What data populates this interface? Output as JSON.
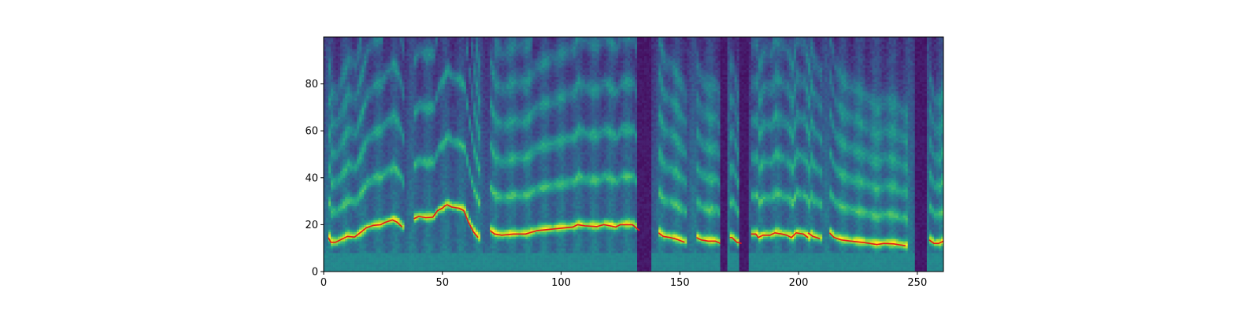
{
  "chart_data": {
    "type": "heatmap",
    "title": "",
    "xlabel": "",
    "ylabel": "",
    "xlim": [
      0,
      261
    ],
    "ylim": [
      0,
      100
    ],
    "x_ticks": [
      {
        "value": 0,
        "label": "0"
      },
      {
        "value": 50,
        "label": "50"
      },
      {
        "value": 100,
        "label": "100"
      },
      {
        "value": 150,
        "label": "150"
      },
      {
        "value": 200,
        "label": "200"
      },
      {
        "value": 250,
        "label": "250"
      }
    ],
    "y_ticks": [
      {
        "value": 0,
        "label": "0"
      },
      {
        "value": 20,
        "label": "20"
      },
      {
        "value": 40,
        "label": "40"
      },
      {
        "value": 60,
        "label": "60"
      },
      {
        "value": 80,
        "label": "80"
      }
    ],
    "colormap": "viridis",
    "grid": false,
    "series": [
      {
        "type": "line",
        "color": "#e41a1c",
        "segments": [
          [
            [
              2,
              14.5
            ],
            [
              3,
              12.5
            ],
            [
              5,
              12.5
            ],
            [
              8,
              14
            ],
            [
              10,
              15
            ],
            [
              13,
              14.7
            ],
            [
              16,
              17
            ],
            [
              18,
              18.7
            ],
            [
              21,
              19.7
            ],
            [
              24,
              20
            ],
            [
              26,
              21
            ],
            [
              29,
              22
            ],
            [
              31,
              21
            ],
            [
              33,
              19
            ]
          ],
          [
            [
              38,
              22.5
            ],
            [
              40,
              23.5
            ],
            [
              43,
              23
            ],
            [
              46,
              23.2
            ],
            [
              48,
              26
            ],
            [
              50,
              27
            ],
            [
              51,
              28
            ],
            [
              52,
              28.5
            ],
            [
              54,
              27.5
            ],
            [
              57,
              27
            ],
            [
              59,
              26
            ],
            [
              61,
              21
            ],
            [
              63,
              17
            ],
            [
              65,
              14.5
            ]
          ],
          [
            [
              70,
              17.5
            ],
            [
              72,
              16
            ],
            [
              75,
              15.5
            ],
            [
              80,
              16
            ],
            [
              85,
              16
            ],
            [
              90,
              17.5
            ],
            [
              95,
              18
            ],
            [
              100,
              18.5
            ],
            [
              105,
              19
            ],
            [
              107,
              20
            ],
            [
              110,
              19.5
            ],
            [
              115,
              19.2
            ],
            [
              118,
              20
            ],
            [
              123,
              19
            ],
            [
              125,
              20
            ],
            [
              130,
              20
            ],
            [
              133,
              17.5
            ]
          ],
          [
            [
              141,
              16.5
            ],
            [
              143,
              15
            ],
            [
              146,
              14.5
            ],
            [
              148,
              14
            ],
            [
              152,
              12.5
            ]
          ],
          [
            [
              157,
              14.5
            ],
            [
              159,
              13.5
            ],
            [
              162,
              13
            ],
            [
              165,
              13
            ],
            [
              167,
              12
            ]
          ],
          [
            [
              171,
              14.5
            ],
            [
              172,
              14.5
            ],
            [
              174,
              12.5
            ],
            [
              176,
              12
            ]
          ],
          [
            [
              180,
              16
            ],
            [
              182,
              16
            ],
            [
              183,
              14.5
            ],
            [
              185,
              15.5
            ],
            [
              188,
              15.5
            ],
            [
              190,
              16.5
            ],
            [
              193,
              16
            ],
            [
              195,
              15.5
            ],
            [
              197,
              14.5
            ],
            [
              199,
              16.5
            ],
            [
              202,
              16
            ],
            [
              204,
              14.5
            ]
          ],
          [
            [
              204,
              16.5
            ],
            [
              206,
              15
            ],
            [
              209,
              14
            ]
          ],
          [
            [
              213,
              16.5
            ],
            [
              215,
              14.5
            ],
            [
              218,
              13.5
            ],
            [
              222,
              13
            ],
            [
              228,
              12.3
            ],
            [
              233,
              11.5
            ],
            [
              236,
              12
            ],
            [
              240,
              11.8
            ],
            [
              245,
              11
            ]
          ],
          [
            [
              255,
              13.5
            ],
            [
              257,
              12
            ],
            [
              259,
              12
            ],
            [
              261,
              13
            ]
          ]
        ]
      }
    ]
  }
}
